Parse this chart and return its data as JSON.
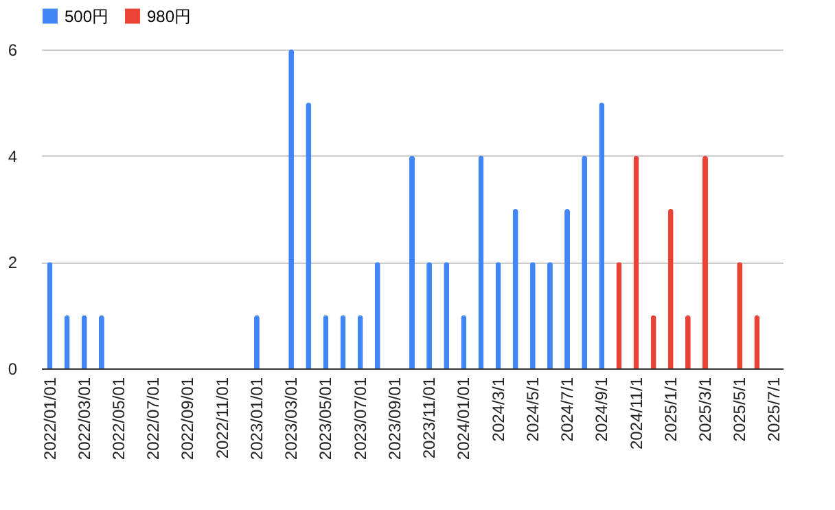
{
  "chart_data": {
    "type": "bar",
    "categories": [
      "2022/01/01",
      null,
      "2022/03/01",
      null,
      "2022/05/01",
      null,
      "2022/07/01",
      null,
      "2022/09/01",
      null,
      "2022/11/01",
      null,
      "2023/01/01",
      null,
      "2023/03/01",
      null,
      "2023/05/01",
      null,
      "2023/07/01",
      null,
      "2023/09/01",
      null,
      "2023/11/01",
      null,
      "2024/01/01",
      null,
      "2024/3/1",
      null,
      "2024/5/1",
      null,
      "2024/7/1",
      null,
      "2024/9/1",
      null,
      "2024/11/1",
      null,
      "2025/1/1",
      null,
      "2025/3/1",
      null,
      "2025/5/1",
      null,
      "2025/7/1"
    ],
    "series": [
      {
        "name": "500円",
        "color": "#4285f4",
        "values": [
          2,
          1,
          1,
          1,
          null,
          null,
          null,
          null,
          null,
          null,
          null,
          null,
          1,
          null,
          6,
          5,
          1,
          1,
          1,
          2,
          null,
          4,
          2,
          2,
          1,
          4,
          2,
          3,
          2,
          2,
          3,
          4,
          5,
          null,
          null,
          null,
          null,
          null,
          null,
          null,
          null,
          null,
          null
        ]
      },
      {
        "name": "980円",
        "color": "#ea4335",
        "values": [
          null,
          null,
          null,
          null,
          null,
          null,
          null,
          null,
          null,
          null,
          null,
          null,
          null,
          null,
          null,
          null,
          null,
          null,
          null,
          null,
          null,
          null,
          null,
          null,
          null,
          null,
          null,
          null,
          null,
          null,
          null,
          null,
          null,
          2,
          4,
          1,
          3,
          1,
          4,
          null,
          2,
          1,
          null
        ]
      }
    ],
    "ylim": [
      0,
      6
    ],
    "yticks": [
      0,
      2,
      4,
      6
    ],
    "grid": "y",
    "legend": "top"
  }
}
